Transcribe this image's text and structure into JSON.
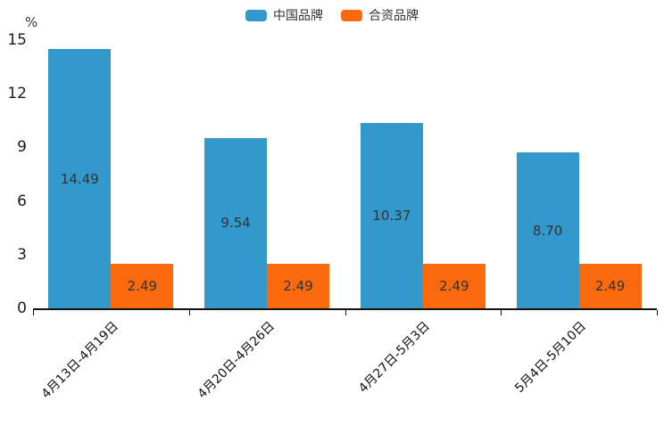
{
  "chart": {
    "unit_label": "%"
  },
  "chart_data": {
    "type": "bar",
    "title": "",
    "categories": [
      "4月13日-4月19日",
      "4月20日-4月26日",
      "4月27日-5月3日",
      "5月4日-5月10日"
    ],
    "series": [
      {
        "name": "中国品牌",
        "color": "#3398cc",
        "values": [
          14.49,
          9.54,
          10.37,
          8.7
        ],
        "labels": [
          "14.49",
          "9.54",
          "10.37",
          "8.70"
        ]
      },
      {
        "name": "合资品牌",
        "color": "#fa6a0d",
        "values": [
          2.49,
          2.49,
          2.49,
          2.49
        ],
        "labels": [
          "2.49",
          "2.49",
          "2.49",
          "2.49"
        ]
      }
    ],
    "xlabel": "",
    "ylabel": "%",
    "ylim": [
      0,
      15
    ],
    "yticks": [
      0,
      3,
      6,
      9,
      12,
      15
    ],
    "grid": false,
    "legend_position": "top",
    "value_labels_position": "inside",
    "x_label_rotation": 45
  }
}
